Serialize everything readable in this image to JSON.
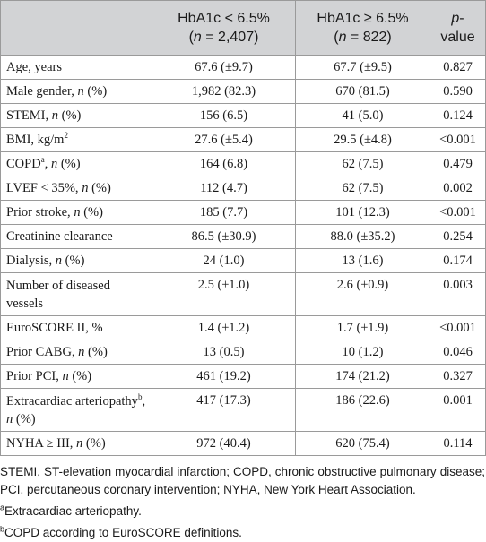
{
  "header": {
    "col1_line1": "HbA1c < 6.5%",
    "col1_n_prefix": "(",
    "col1_n_var": "n",
    "col1_n_value": " = 2,407)",
    "col2_line1": "HbA1c ≥ 6.5%",
    "col2_n_prefix": "(",
    "col2_n_var": "n",
    "col2_n_value": " = 822)",
    "col3_p": "p",
    "col3_dash": "-",
    "col3_line2": "value"
  },
  "rows": [
    {
      "label": "Age, years",
      "a": "67.6 (±9.7)",
      "b": "67.7 (±9.5)",
      "p": "0.827"
    },
    {
      "label": "Male gender, ",
      "label_it": "n",
      "label_tail": " (%)",
      "a": "1,982 (82.3)",
      "b": "670 (81.5)",
      "p": "0.590"
    },
    {
      "label": "STEMI, ",
      "label_it": "n",
      "label_tail": " (%)",
      "a": "156 (6.5)",
      "b": "41 (5.0)",
      "p": "0.124"
    },
    {
      "label": "BMI, kg/m",
      "label_sup": "2",
      "a": "27.6 (±5.4)",
      "b": "29.5 (±4.8)",
      "p": "<0.001"
    },
    {
      "label": "COPD",
      "label_sup": "a",
      "label_mid": ", ",
      "label_it": "n",
      "label_tail": " (%)",
      "a": "164 (6.8)",
      "b": "62 (7.5)",
      "p": "0.479"
    },
    {
      "label": "LVEF < 35%, ",
      "label_it": "n",
      "label_tail": " (%)",
      "a": "112 (4.7)",
      "b": "62 (7.5)",
      "p": "0.002"
    },
    {
      "label": "Prior stroke, ",
      "label_it": "n",
      "label_tail": " (%)",
      "a": "185 (7.7)",
      "b": "101 (12.3)",
      "p": "<0.001"
    },
    {
      "label": "Creatinine clearance",
      "a": "86.5 (±30.9)",
      "b": "88.0 (±35.2)",
      "p": "0.254"
    },
    {
      "label": "Dialysis, ",
      "label_it": "n",
      "label_tail": " (%)",
      "a": "24 (1.0)",
      "b": "13 (1.6)",
      "p": "0.174"
    },
    {
      "label": "Number of diseased vessels",
      "a": "2.5 (±1.0)",
      "b": "2.6 (±0.9)",
      "p": "0.003"
    },
    {
      "label": "EuroSCORE II, %",
      "a": "1.4 (±1.2)",
      "b": "1.7 (±1.9)",
      "p": "<0.001"
    },
    {
      "label": "Prior CABG, ",
      "label_it": "n",
      "label_tail": " (%)",
      "a": "13 (0.5)",
      "b": "10 (1.2)",
      "p": "0.046"
    },
    {
      "label": "Prior PCI, ",
      "label_it": "n",
      "label_tail": " (%)",
      "a": "461 (19.2)",
      "b": "174 (21.2)",
      "p": "0.327"
    },
    {
      "label": "Extracardiac arteriopathy",
      "label_sup": "b",
      "label_mid": ", ",
      "label_it": "n",
      "label_tail": " (%)",
      "a": "417 (17.3)",
      "b": "186 (22.6)",
      "p": "0.001"
    },
    {
      "label": "NYHA ≥ III, ",
      "label_it": "n",
      "label_tail": " (%)",
      "a": "972 (40.4)",
      "b": "620 (75.4)",
      "p": "0.114"
    }
  ],
  "notes": {
    "abbrev": "STEMI, ST-elevation myocardial infarction; COPD, chronic obstructive pulmonary disease; PCI, percutaneous coronary intervention; NYHA, New York Heart Association.",
    "fn_a_mark": "a",
    "fn_a_text": "Extracardiac arteriopathy.",
    "fn_b_mark": "b",
    "fn_b_text": "COPD according to EuroSCORE definitions."
  }
}
